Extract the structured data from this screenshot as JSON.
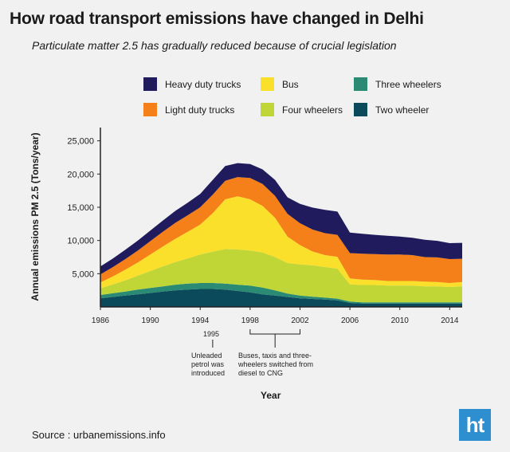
{
  "title": "How road transport emissions have changed in Delhi",
  "subtitle": "Particulate matter 2.5 has gradually reduced because of crucial legislation",
  "source": "Source : urbanemissions.info",
  "logo_text": "ht",
  "annotations": {
    "year_1995": "1995",
    "note_1995": "Unleaded petrol was introduced",
    "year_1998": "1998",
    "note_1998": "Buses, taxis and three-wheelers switched from diesel to CNG"
  },
  "chart_data": {
    "type": "area",
    "stacked": true,
    "xlabel": "Year",
    "ylabel": "Annual emissions PM 2.5 (Tons/year)",
    "ylim": [
      0,
      27000
    ],
    "xlim": [
      1986,
      2015
    ],
    "yticks": [
      5000,
      10000,
      15000,
      20000,
      25000
    ],
    "ytick_labels": [
      "5,000",
      "10,000",
      "15,000",
      "20,000",
      "25,000"
    ],
    "xticks": [
      1986,
      1990,
      1994,
      1998,
      2002,
      2006,
      2010,
      2014
    ],
    "x": [
      1986,
      1987,
      1988,
      1989,
      1990,
      1991,
      1992,
      1993,
      1994,
      1995,
      1996,
      1997,
      1998,
      1999,
      2000,
      2001,
      2002,
      2003,
      2004,
      2005,
      2006,
      2007,
      2008,
      2009,
      2010,
      2011,
      2012,
      2013,
      2014,
      2015
    ],
    "series": [
      {
        "name": "Two wheeler",
        "color": "#0b4a5a",
        "values": [
          1300,
          1500,
          1700,
          1900,
          2100,
          2300,
          2500,
          2600,
          2700,
          2700,
          2600,
          2400,
          2200,
          1900,
          1700,
          1500,
          1300,
          1200,
          1100,
          1000,
          600,
          500,
          500,
          500,
          500,
          500,
          500,
          500,
          500,
          500
        ]
      },
      {
        "name": "Three wheelers",
        "color": "#2a8a73",
        "values": [
          500,
          550,
          600,
          700,
          750,
          800,
          850,
          900,
          900,
          900,
          900,
          950,
          1000,
          1000,
          800,
          500,
          400,
          350,
          300,
          250,
          200,
          200,
          200,
          200,
          200,
          200,
          200,
          200,
          200,
          200
        ]
      },
      {
        "name": "Four wheelers",
        "color": "#c0d636",
        "values": [
          1000,
          1350,
          1700,
          2100,
          2550,
          3000,
          3400,
          3800,
          4300,
          4700,
          5200,
          5300,
          5300,
          5300,
          5000,
          4600,
          4700,
          4700,
          4600,
          4500,
          2600,
          2600,
          2600,
          2500,
          2500,
          2500,
          2400,
          2400,
          2300,
          2400
        ]
      },
      {
        "name": "Bus",
        "color": "#fbe02b",
        "values": [
          900,
          1200,
          1600,
          2000,
          2500,
          3000,
          3500,
          4000,
          4500,
          5800,
          7500,
          8000,
          7700,
          7000,
          5900,
          4000,
          2900,
          2100,
          1800,
          1800,
          900,
          800,
          750,
          700,
          700,
          700,
          700,
          650,
          600,
          650
        ]
      },
      {
        "name": "Light duty trucks",
        "color": "#f57f18",
        "values": [
          1200,
          1400,
          1600,
          1800,
          2000,
          2200,
          2400,
          2500,
          2600,
          2800,
          2800,
          2900,
          3200,
          3300,
          3300,
          3400,
          3300,
          3300,
          3300,
          3300,
          3800,
          3900,
          3900,
          4000,
          4000,
          3900,
          3700,
          3700,
          3600,
          3500
        ]
      },
      {
        "name": "Heavy duty trucks",
        "color": "#1f1b5c",
        "values": [
          1200,
          1300,
          1400,
          1500,
          1600,
          1700,
          1800,
          1900,
          2000,
          2200,
          2200,
          2100,
          2100,
          2200,
          2400,
          2500,
          2900,
          3300,
          3500,
          3500,
          3100,
          3000,
          2900,
          2800,
          2700,
          2600,
          2600,
          2500,
          2400,
          2400
        ]
      }
    ]
  }
}
